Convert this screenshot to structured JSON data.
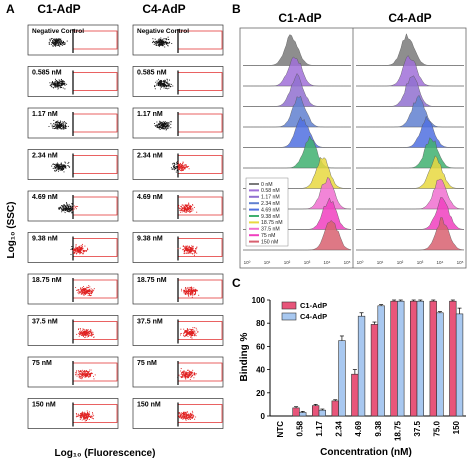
{
  "panels": {
    "a": {
      "label": "A"
    },
    "b": {
      "label": "B"
    },
    "c": {
      "label": "C"
    }
  },
  "colors": {
    "pink": "#e8557a",
    "blue": "#a8c8f0",
    "red": "#e02020",
    "dark": "#222222"
  },
  "chart_data": [
    {
      "type": "scatter",
      "panel": "A",
      "columns": [
        "C1-AdP",
        "C4-AdP"
      ],
      "rows": [
        "Negative Control",
        "0.585 nM",
        "1.17 nM",
        "2.34 nM",
        "4.69 nM",
        "9.38 nM",
        "18.75 nM",
        "37.5 nM",
        "75 nM",
        "150 nM"
      ],
      "ylabel": "Log₁₀ (SSC)",
      "xlabel": "Log₁₀ (Fluorescence)",
      "positive_fraction": {
        "C1-AdP": [
          0,
          0.06,
          0.09,
          0.13,
          0.36,
          0.78,
          0.99,
          0.99,
          0.98,
          0.99
        ],
        "C4-AdP": [
          0,
          0.03,
          0.05,
          0.64,
          0.86,
          0.94,
          0.99,
          0.99,
          0.89,
          0.87
        ]
      }
    },
    {
      "type": "area",
      "panel": "B",
      "columns": [
        "C1-AdP",
        "C4-AdP"
      ],
      "legend": [
        "0 nM",
        "0.58 nM",
        "1.17 nM",
        "2.34 nM",
        "4.69 nM",
        "9.38 nM",
        "18.75 nM",
        "37.5 nM",
        "75 nM",
        "150 nM"
      ],
      "series_colors": [
        "#7a7a7a",
        "#a070d8",
        "#9070d0",
        "#6080d0",
        "#5070e0",
        "#40b070",
        "#e8d840",
        "#f070d0",
        "#f040c0",
        "#d86070"
      ],
      "xticks": [
        "10⁰",
        "10¹",
        "10²",
        "10³",
        "10⁴",
        "10⁵"
      ],
      "legend_position": "bottom-left"
    },
    {
      "type": "bar",
      "panel": "C",
      "categories": [
        "NTC",
        "0.58",
        "1.17",
        "2.34",
        "4.69",
        "9.38",
        "18.75",
        "37.5",
        "75.0",
        "150"
      ],
      "series": [
        {
          "name": "C1-AdP",
          "values": [
            0,
            7,
            9,
            13,
            36,
            79,
            99,
            99,
            99,
            99
          ],
          "errors": [
            0,
            1,
            1,
            1,
            4,
            2,
            1,
            1,
            1,
            1
          ]
        },
        {
          "name": "C4-AdP",
          "values": [
            0,
            3,
            5,
            65,
            86,
            95,
            99,
            99,
            89,
            88
          ],
          "errors": [
            0,
            1,
            1,
            4,
            3,
            1,
            1,
            1,
            1,
            5
          ]
        }
      ],
      "xlabel": "Concentration (nM)",
      "ylabel": "Binding %",
      "ylim": [
        0,
        100
      ],
      "yticks": [
        "0",
        "20",
        "40",
        "60",
        "80",
        "100"
      ],
      "legend_position": "top-left"
    }
  ]
}
